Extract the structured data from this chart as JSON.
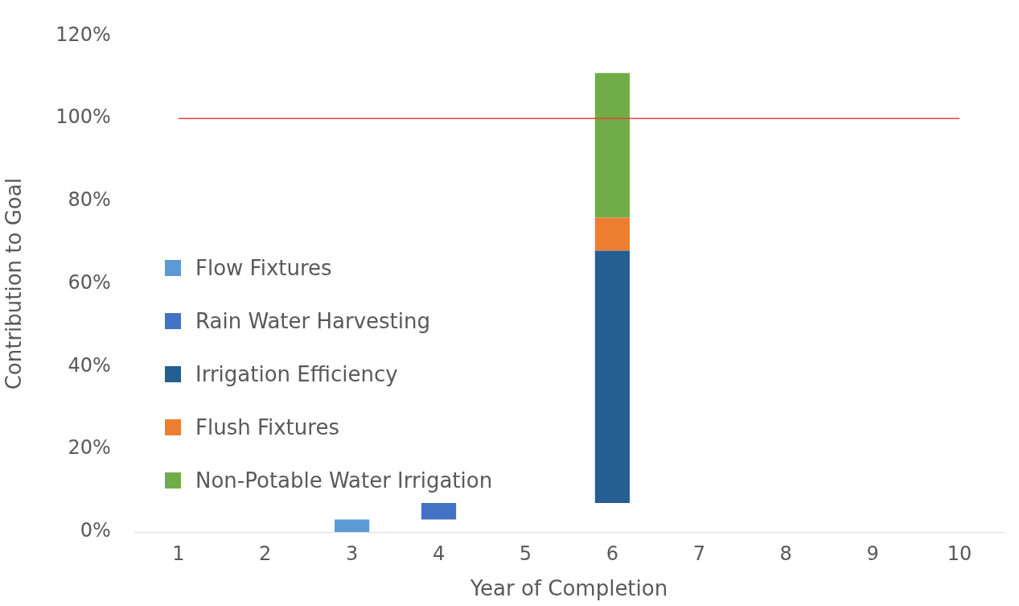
{
  "chart_data": {
    "type": "bar",
    "xlabel": "Year of Completion",
    "ylabel": "Contribution to Goal",
    "categories": [
      "1",
      "2",
      "3",
      "4",
      "5",
      "6",
      "7",
      "8",
      "9",
      "10"
    ],
    "series": [
      {
        "name": "Flow Fixtures",
        "color": "#5b9bd5",
        "values": [
          null,
          null,
          3,
          null,
          null,
          null,
          null,
          null,
          null,
          null
        ],
        "base": [
          null,
          null,
          0,
          null,
          null,
          null,
          null,
          null,
          null,
          null
        ]
      },
      {
        "name": "Rain Water Harvesting",
        "color": "#4472c4",
        "values": [
          null,
          null,
          null,
          4,
          null,
          null,
          null,
          null,
          null,
          null
        ],
        "base": [
          null,
          null,
          null,
          3,
          null,
          null,
          null,
          null,
          null,
          null
        ]
      },
      {
        "name": "Irrigation Efficiency",
        "color": "#255e91",
        "values": [
          null,
          null,
          null,
          null,
          null,
          61,
          null,
          null,
          null,
          null
        ],
        "base": [
          null,
          null,
          null,
          null,
          null,
          7,
          null,
          null,
          null,
          null
        ]
      },
      {
        "name": "Flush Fixtures",
        "color": "#ed7d31",
        "values": [
          null,
          null,
          null,
          null,
          null,
          8,
          null,
          null,
          null,
          null
        ],
        "base": [
          null,
          null,
          null,
          null,
          null,
          68,
          null,
          null,
          null,
          null
        ]
      },
      {
        "name": "Non-Potable Water Irrigation",
        "color": "#70ad47",
        "values": [
          null,
          null,
          null,
          null,
          null,
          35,
          null,
          null,
          null,
          null
        ],
        "base": [
          null,
          null,
          null,
          null,
          null,
          76,
          null,
          null,
          null,
          null
        ]
      }
    ],
    "ylim": [
      0,
      120
    ],
    "yticks": [
      {
        "value": 0,
        "label": "0%"
      },
      {
        "value": 20,
        "label": "20%"
      },
      {
        "value": 40,
        "label": "40%"
      },
      {
        "value": 60,
        "label": "60%"
      },
      {
        "value": 80,
        "label": "80%"
      },
      {
        "value": 100,
        "label": "100%"
      },
      {
        "value": 120,
        "label": "120%"
      }
    ],
    "ref_lines": [
      {
        "axis": "y",
        "value": 100,
        "color": "#e8413a"
      }
    ],
    "grid": false,
    "legend": "left"
  }
}
